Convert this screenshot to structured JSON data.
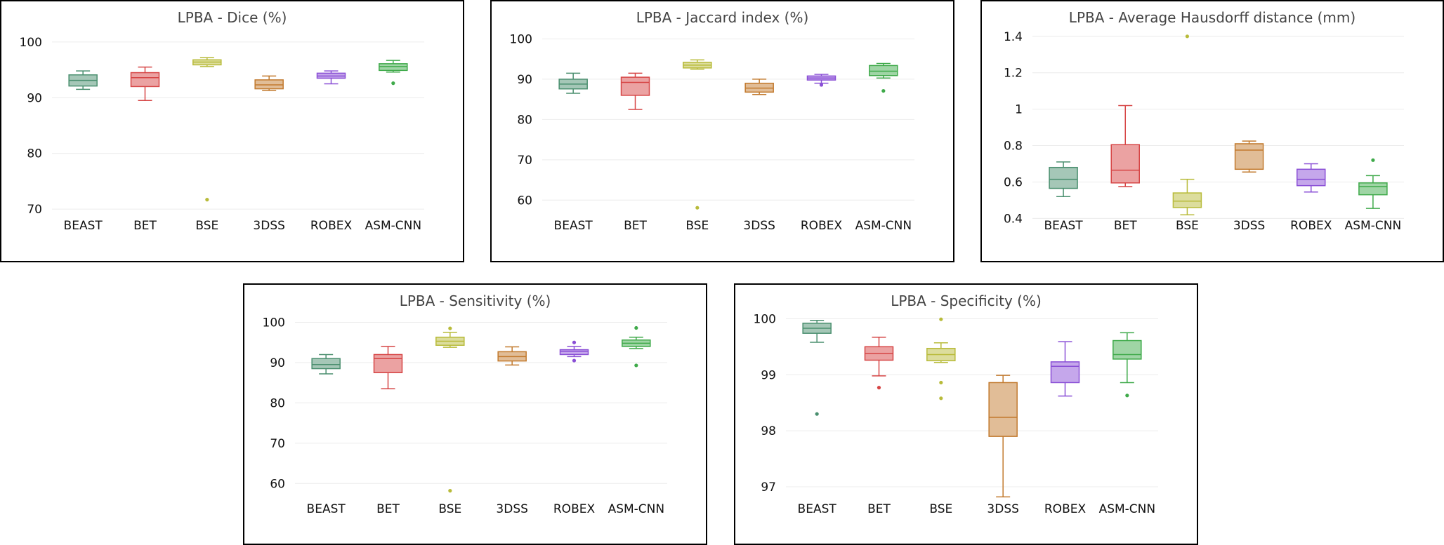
{
  "chart_data": [
    {
      "type": "box",
      "title": "LPBA - Dice (%)",
      "categories": [
        "BEAST",
        "BET",
        "BSE",
        "3DSS",
        "ROBEX",
        "ASM-CNN"
      ],
      "ylim": [
        68,
        102
      ],
      "yticks": [
        70,
        80,
        90,
        100
      ],
      "grid": true,
      "boxes": [
        {
          "name": "BEAST",
          "color": "#4a8f6f",
          "min": 91.5,
          "q1": 92.1,
          "median": 93.1,
          "q3": 94.1,
          "max": 94.8,
          "outliers": []
        },
        {
          "name": "BET",
          "color": "#d64545",
          "min": 89.5,
          "q1": 92.0,
          "median": 93.6,
          "q3": 94.5,
          "max": 95.5,
          "outliers": []
        },
        {
          "name": "BSE",
          "color": "#b8bb3a",
          "min": 95.6,
          "q1": 95.9,
          "median": 96.4,
          "q3": 96.8,
          "max": 97.2,
          "outliers": [
            71.7
          ]
        },
        {
          "name": "3DSS",
          "color": "#c27a2e",
          "min": 91.3,
          "q1": 91.6,
          "median": 92.3,
          "q3": 93.2,
          "max": 93.9,
          "outliers": []
        },
        {
          "name": "ROBEX",
          "color": "#8a4fd6",
          "min": 92.5,
          "q1": 93.5,
          "median": 93.9,
          "q3": 94.4,
          "max": 94.8,
          "outliers": []
        },
        {
          "name": "ASM-CNN",
          "color": "#3faa4a",
          "min": 94.6,
          "q1": 94.9,
          "median": 95.6,
          "q3": 96.1,
          "max": 96.7,
          "outliers": [
            92.6
          ]
        }
      ]
    },
    {
      "type": "box",
      "title": "LPBA - Jaccard index (%)",
      "categories": [
        "BEAST",
        "BET",
        "BSE",
        "3DSS",
        "ROBEX",
        "ASM-CNN"
      ],
      "ylim": [
        55,
        102
      ],
      "yticks": [
        60,
        70,
        80,
        90,
        100
      ],
      "grid": true,
      "boxes": [
        {
          "name": "BEAST",
          "color": "#4a8f6f",
          "min": 86.5,
          "q1": 87.6,
          "median": 88.8,
          "q3": 90.0,
          "max": 91.5,
          "outliers": []
        },
        {
          "name": "BET",
          "color": "#d64545",
          "min": 82.5,
          "q1": 86.0,
          "median": 89.2,
          "q3": 90.5,
          "max": 91.5,
          "outliers": []
        },
        {
          "name": "BSE",
          "color": "#b8bb3a",
          "min": 92.5,
          "q1": 92.8,
          "median": 93.5,
          "q3": 94.2,
          "max": 94.8,
          "outliers": [
            58.1
          ]
        },
        {
          "name": "3DSS",
          "color": "#c27a2e",
          "min": 86.2,
          "q1": 86.8,
          "median": 87.8,
          "q3": 89.0,
          "max": 90.0,
          "outliers": []
        },
        {
          "name": "ROBEX",
          "color": "#8a4fd6",
          "min": 89.0,
          "q1": 89.8,
          "median": 90.3,
          "q3": 90.8,
          "max": 91.2,
          "outliers": [
            88.6
          ]
        },
        {
          "name": "ASM-CNN",
          "color": "#3faa4a",
          "min": 90.3,
          "q1": 90.9,
          "median": 92.0,
          "q3": 93.4,
          "max": 93.9,
          "outliers": [
            87.1
          ]
        }
      ]
    },
    {
      "type": "box",
      "title": "LPBA - Average Hausdorff distance (mm)",
      "categories": [
        "BEAST",
        "BET",
        "BSE",
        "3DSS",
        "ROBEX",
        "ASM-CNN"
      ],
      "ylim": [
        0.39,
        1.43
      ],
      "yticks": [
        0.4,
        0.6,
        0.8,
        1,
        1.2,
        1.4
      ],
      "grid": true,
      "boxes": [
        {
          "name": "BEAST",
          "color": "#4a8f6f",
          "min": 0.52,
          "q1": 0.565,
          "median": 0.615,
          "q3": 0.68,
          "max": 0.71,
          "outliers": []
        },
        {
          "name": "BET",
          "color": "#d64545",
          "min": 0.575,
          "q1": 0.595,
          "median": 0.665,
          "q3": 0.805,
          "max": 1.02,
          "outliers": []
        },
        {
          "name": "BSE",
          "color": "#b8bb3a",
          "min": 0.42,
          "q1": 0.46,
          "median": 0.495,
          "q3": 0.54,
          "max": 0.615,
          "outliers": [
            1.4
          ]
        },
        {
          "name": "3DSS",
          "color": "#c27a2e",
          "min": 0.655,
          "q1": 0.67,
          "median": 0.775,
          "q3": 0.81,
          "max": 0.825,
          "outliers": []
        },
        {
          "name": "ROBEX",
          "color": "#8a4fd6",
          "min": 0.545,
          "q1": 0.58,
          "median": 0.615,
          "q3": 0.67,
          "max": 0.7,
          "outliers": []
        },
        {
          "name": "ASM-CNN",
          "color": "#3faa4a",
          "min": 0.455,
          "q1": 0.53,
          "median": 0.575,
          "q3": 0.595,
          "max": 0.635,
          "outliers": [
            0.72
          ]
        }
      ]
    },
    {
      "type": "box",
      "title": "LPBA - Sensitivity (%)",
      "categories": [
        "BEAST",
        "BET",
        "BSE",
        "3DSS",
        "ROBEX",
        "ASM-CNN"
      ],
      "ylim": [
        55,
        102
      ],
      "yticks": [
        60,
        70,
        80,
        90,
        100
      ],
      "grid": true,
      "boxes": [
        {
          "name": "BEAST",
          "color": "#4a8f6f",
          "min": 87.2,
          "q1": 88.5,
          "median": 89.5,
          "q3": 91.0,
          "max": 92.0,
          "outliers": []
        },
        {
          "name": "BET",
          "color": "#d64545",
          "min": 83.5,
          "q1": 87.5,
          "median": 91.0,
          "q3": 92.0,
          "max": 94.0,
          "outliers": []
        },
        {
          "name": "BSE",
          "color": "#b8bb3a",
          "min": 93.8,
          "q1": 94.3,
          "median": 95.3,
          "q3": 96.3,
          "max": 97.5,
          "outliers": [
            98.5,
            58.2
          ]
        },
        {
          "name": "3DSS",
          "color": "#c27a2e",
          "min": 89.4,
          "q1": 90.4,
          "median": 91.5,
          "q3": 92.7,
          "max": 93.9,
          "outliers": []
        },
        {
          "name": "ROBEX",
          "color": "#8a4fd6",
          "min": 91.5,
          "q1": 92.0,
          "median": 92.8,
          "q3": 93.2,
          "max": 94.0,
          "outliers": [
            95.0,
            90.5
          ]
        },
        {
          "name": "ASM-CNN",
          "color": "#3faa4a",
          "min": 93.5,
          "q1": 94.0,
          "median": 94.8,
          "q3": 95.6,
          "max": 96.3,
          "outliers": [
            98.6,
            89.3
          ]
        }
      ]
    },
    {
      "type": "box",
      "title": "LPBA - Specificity (%)",
      "categories": [
        "BEAST",
        "BET",
        "BSE",
        "3DSS",
        "ROBEX",
        "ASM-CNN"
      ],
      "ylim": [
        96.7,
        100.08
      ],
      "yticks": [
        97,
        98,
        99,
        100
      ],
      "grid": true,
      "boxes": [
        {
          "name": "BEAST",
          "color": "#4a8f6f",
          "min": 99.58,
          "q1": 99.74,
          "median": 99.83,
          "q3": 99.92,
          "max": 99.97,
          "outliers": [
            98.3
          ]
        },
        {
          "name": "BET",
          "color": "#d64545",
          "min": 98.98,
          "q1": 99.26,
          "median": 99.38,
          "q3": 99.5,
          "max": 99.67,
          "outliers": [
            98.77
          ]
        },
        {
          "name": "BSE",
          "color": "#b8bb3a",
          "min": 99.22,
          "q1": 99.25,
          "median": 99.36,
          "q3": 99.47,
          "max": 99.57,
          "outliers": [
            99.99,
            98.86,
            98.58
          ]
        },
        {
          "name": "3DSS",
          "color": "#c27a2e",
          "min": 96.82,
          "q1": 97.9,
          "median": 98.24,
          "q3": 98.86,
          "max": 98.99,
          "outliers": []
        },
        {
          "name": "ROBEX",
          "color": "#8a4fd6",
          "min": 98.62,
          "q1": 98.86,
          "median": 99.15,
          "q3": 99.23,
          "max": 99.59,
          "outliers": []
        },
        {
          "name": "ASM-CNN",
          "color": "#3faa4a",
          "min": 98.86,
          "q1": 99.28,
          "median": 99.36,
          "q3": 99.61,
          "max": 99.75,
          "outliers": [
            98.63
          ]
        }
      ]
    }
  ]
}
